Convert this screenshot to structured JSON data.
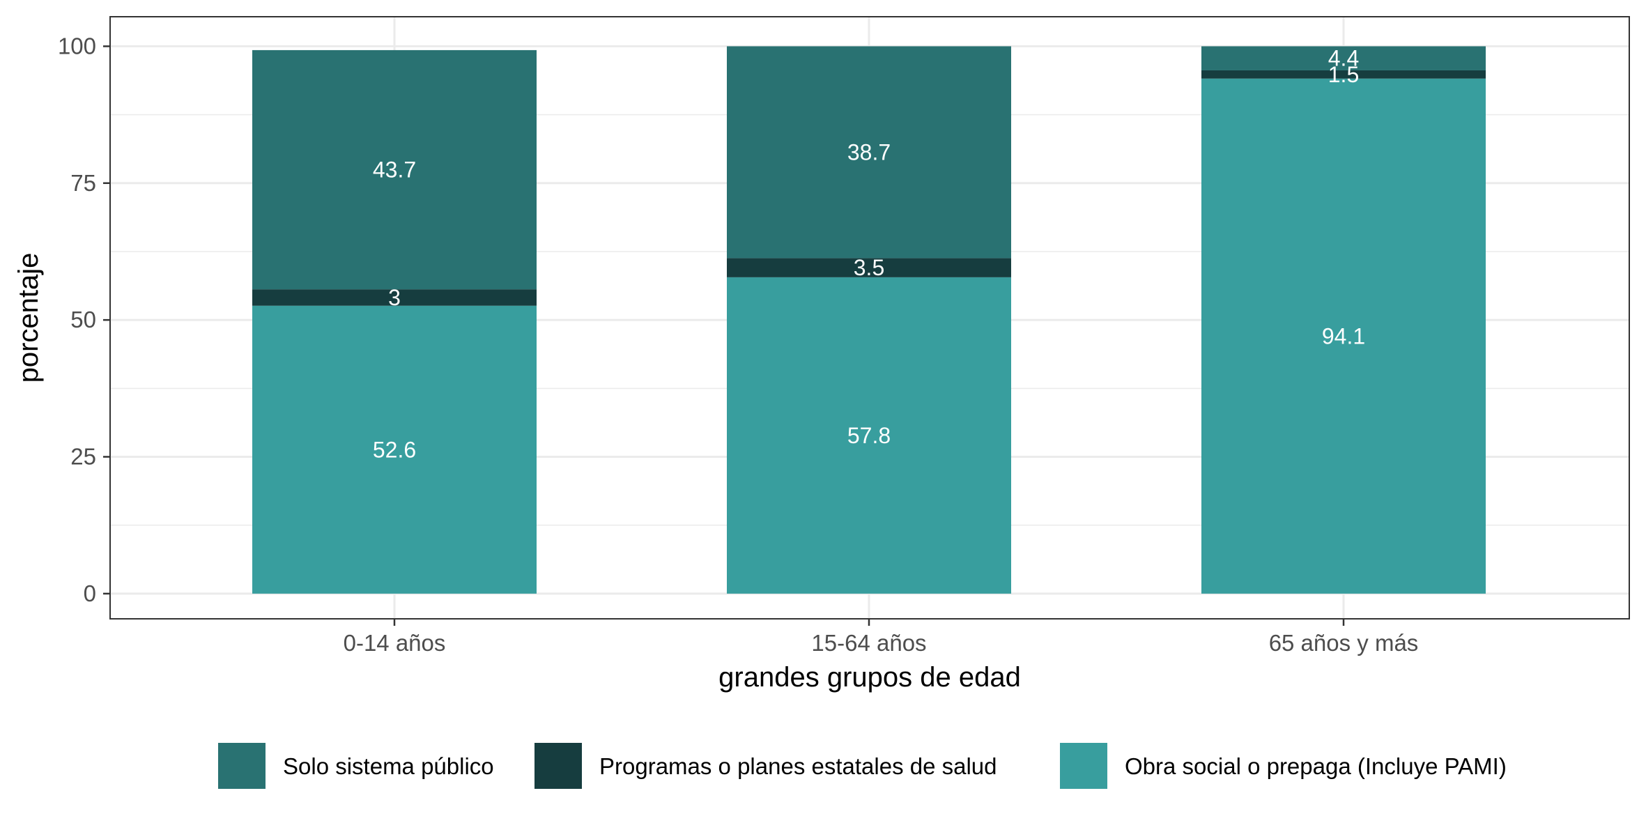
{
  "chart_data": {
    "type": "bar",
    "stacked": true,
    "title": "",
    "xlabel": "grandes grupos de edad",
    "ylabel": "porcentaje",
    "ylim": [
      -4.6,
      105.4
    ],
    "yticks": [
      0,
      25,
      50,
      75,
      100
    ],
    "grid": true,
    "legend_position": "bottom",
    "categories": [
      "0-14 años",
      "15-64 años",
      "65 años y más"
    ],
    "series": [
      {
        "name": "Obra social o prepaga (Incluye PAMI)",
        "color": "#389e9e",
        "values": [
          52.6,
          57.8,
          94.1
        ]
      },
      {
        "name": "Programas o planes estatales de salud",
        "color": "#163d3f",
        "values": [
          3,
          3.5,
          1.5
        ]
      },
      {
        "name": "Solo sistema público",
        "color": "#297272",
        "values": [
          43.7,
          38.7,
          4.4
        ]
      }
    ],
    "legend_order": [
      2,
      1,
      0
    ]
  }
}
